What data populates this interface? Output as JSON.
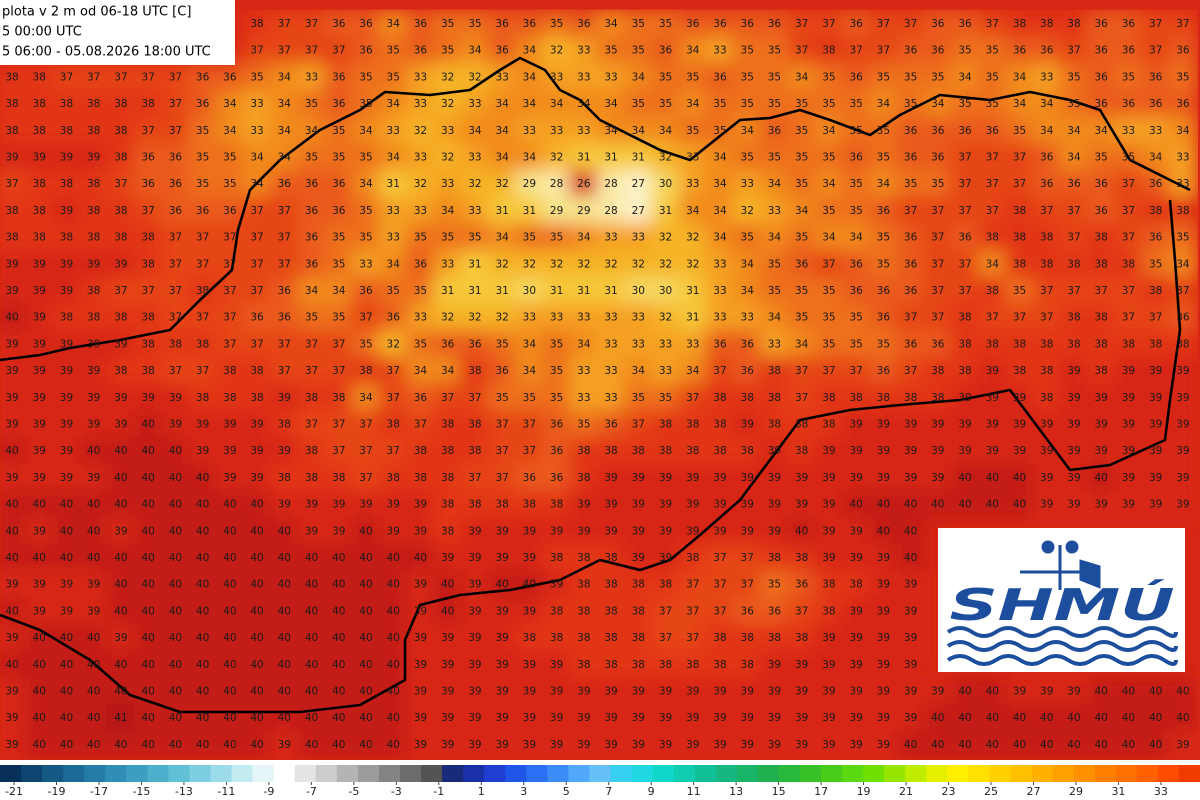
{
  "header": {
    "lines": [
      "plota v 2 m od 06-18 UTC [C]",
      "5 00:00 UTC",
      "5 06:00 - 05.08.2026 18:00 UTC"
    ]
  },
  "logo": {
    "text": "SHMÚ"
  },
  "map": {
    "map_colors": {
      "27": "#fdf3c8",
      "28": "#fbe9a6",
      "29": "#f8e58c",
      "30": "#f6d860",
      "31": "#f7c93a",
      "32": "#f6b428",
      "33": "#f5a020",
      "34": "#f28a1e",
      "35": "#ee701c",
      "36": "#ea5a1a",
      "37": "#e64418",
      "38": "#e23416",
      "39": "#d82614",
      "40": "#c41e14",
      "41": "#b01812"
    },
    "grid": [
      [
        null,
        null,
        null,
        null,
        null,
        null,
        null,
        null,
        null,
        38,
        37,
        37,
        36,
        36,
        34,
        36,
        35,
        35,
        36,
        36,
        35,
        36,
        34,
        35,
        35,
        36,
        36,
        36,
        36,
        37,
        37,
        36,
        37,
        37,
        36,
        36,
        37,
        38,
        38,
        38,
        36,
        36,
        37,
        37
      ],
      [
        null,
        null,
        null,
        null,
        null,
        null,
        null,
        null,
        null,
        37,
        37,
        37,
        37,
        36,
        35,
        36,
        35,
        34,
        36,
        34,
        32,
        33,
        35,
        35,
        36,
        34,
        33,
        35,
        35,
        37,
        38,
        37,
        37,
        36,
        36,
        35,
        35,
        36,
        36,
        37,
        36,
        36,
        37,
        36
      ],
      [
        38,
        38,
        37,
        37,
        37,
        37,
        37,
        36,
        36,
        35,
        34,
        33,
        36,
        35,
        35,
        33,
        32,
        32,
        33,
        34,
        33,
        33,
        33,
        34,
        35,
        35,
        36,
        35,
        35,
        34,
        35,
        36,
        35,
        35,
        35,
        34,
        35,
        34,
        33,
        35,
        36,
        35,
        36,
        35
      ],
      [
        38,
        38,
        38,
        38,
        38,
        38,
        37,
        36,
        34,
        33,
        34,
        35,
        36,
        35,
        34,
        33,
        32,
        33,
        34,
        34,
        34,
        34,
        34,
        35,
        35,
        34,
        35,
        35,
        35,
        35,
        35,
        35,
        34,
        35,
        34,
        35,
        35,
        34,
        34,
        35,
        36,
        36,
        36,
        36
      ],
      [
        38,
        38,
        38,
        38,
        38,
        37,
        37,
        35,
        34,
        33,
        34,
        34,
        35,
        34,
        33,
        32,
        33,
        34,
        34,
        33,
        33,
        33,
        34,
        34,
        34,
        35,
        35,
        34,
        36,
        35,
        34,
        35,
        35,
        36,
        36,
        36,
        36,
        35,
        34,
        34,
        34,
        33,
        33,
        34
      ],
      [
        39,
        39,
        39,
        39,
        38,
        36,
        36,
        35,
        35,
        34,
        34,
        35,
        35,
        35,
        34,
        33,
        32,
        33,
        34,
        34,
        32,
        31,
        31,
        31,
        32,
        33,
        34,
        35,
        35,
        35,
        35,
        36,
        35,
        36,
        36,
        37,
        37,
        37,
        36,
        34,
        35,
        35,
        34,
        33
      ],
      [
        37,
        38,
        38,
        38,
        37,
        36,
        36,
        35,
        35,
        34,
        36,
        36,
        36,
        34,
        31,
        32,
        33,
        32,
        32,
        29,
        28,
        26,
        28,
        27,
        30,
        33,
        34,
        33,
        34,
        35,
        34,
        35,
        34,
        35,
        35,
        37,
        37,
        37,
        36,
        36,
        36,
        37,
        36,
        33
      ],
      [
        38,
        38,
        39,
        38,
        38,
        37,
        36,
        36,
        36,
        37,
        37,
        36,
        36,
        35,
        33,
        33,
        34,
        33,
        31,
        31,
        29,
        29,
        28,
        27,
        31,
        34,
        34,
        32,
        33,
        34,
        35,
        35,
        36,
        37,
        37,
        37,
        37,
        38,
        37,
        37,
        36,
        37,
        38,
        38
      ],
      [
        38,
        38,
        38,
        38,
        38,
        38,
        37,
        37,
        37,
        37,
        37,
        36,
        35,
        35,
        33,
        35,
        35,
        35,
        34,
        35,
        35,
        34,
        33,
        33,
        32,
        32,
        34,
        35,
        34,
        35,
        34,
        34,
        35,
        36,
        37,
        36,
        38,
        38,
        38,
        37,
        38,
        37,
        36,
        35
      ],
      [
        39,
        39,
        39,
        39,
        39,
        38,
        37,
        37,
        37,
        37,
        37,
        36,
        35,
        33,
        34,
        36,
        33,
        31,
        32,
        32,
        32,
        32,
        32,
        32,
        32,
        32,
        33,
        34,
        35,
        36,
        37,
        36,
        35,
        36,
        37,
        37,
        34,
        38,
        38,
        38,
        38,
        38,
        35,
        34
      ],
      [
        39,
        39,
        39,
        38,
        37,
        37,
        37,
        38,
        37,
        37,
        36,
        34,
        34,
        36,
        35,
        35,
        31,
        31,
        31,
        30,
        31,
        31,
        31,
        30,
        30,
        31,
        33,
        34,
        35,
        35,
        35,
        36,
        36,
        36,
        37,
        37,
        38,
        35,
        37,
        37,
        37,
        37,
        38,
        37
      ],
      [
        40,
        39,
        38,
        38,
        38,
        38,
        37,
        37,
        37,
        36,
        36,
        35,
        35,
        37,
        36,
        33,
        32,
        32,
        32,
        33,
        33,
        33,
        33,
        33,
        32,
        31,
        33,
        33,
        34,
        35,
        35,
        35,
        36,
        37,
        37,
        38,
        37,
        37,
        37,
        38,
        38,
        37,
        37,
        36
      ],
      [
        39,
        39,
        39,
        39,
        39,
        38,
        38,
        38,
        37,
        37,
        37,
        37,
        37,
        35,
        32,
        35,
        36,
        36,
        35,
        34,
        35,
        34,
        33,
        33,
        33,
        33,
        36,
        36,
        33,
        34,
        35,
        35,
        35,
        36,
        36,
        38,
        38,
        38,
        38,
        38,
        38,
        38,
        38,
        38
      ],
      [
        39,
        39,
        39,
        39,
        38,
        38,
        37,
        37,
        38,
        38,
        37,
        37,
        37,
        38,
        37,
        34,
        34,
        38,
        36,
        34,
        35,
        33,
        33,
        34,
        33,
        34,
        37,
        36,
        38,
        37,
        37,
        37,
        36,
        37,
        38,
        38,
        39,
        38,
        38,
        39,
        38,
        39,
        39,
        39
      ],
      [
        39,
        39,
        39,
        39,
        39,
        39,
        39,
        38,
        38,
        38,
        39,
        38,
        38,
        34,
        37,
        36,
        37,
        37,
        35,
        35,
        35,
        33,
        33,
        35,
        35,
        37,
        38,
        38,
        38,
        37,
        38,
        38,
        38,
        38,
        38,
        39,
        39,
        39,
        38,
        39,
        39,
        39,
        39,
        39
      ],
      [
        39,
        39,
        39,
        39,
        39,
        40,
        39,
        39,
        39,
        39,
        38,
        37,
        37,
        37,
        38,
        37,
        38,
        38,
        37,
        37,
        36,
        35,
        36,
        37,
        38,
        38,
        38,
        39,
        38,
        38,
        38,
        39,
        39,
        39,
        39,
        39,
        39,
        39,
        39,
        39,
        39,
        39,
        39,
        39
      ],
      [
        40,
        39,
        39,
        40,
        40,
        40,
        40,
        39,
        39,
        39,
        39,
        38,
        37,
        37,
        37,
        38,
        38,
        38,
        37,
        37,
        36,
        38,
        38,
        38,
        38,
        38,
        38,
        38,
        39,
        38,
        39,
        39,
        39,
        39,
        39,
        39,
        39,
        39,
        39,
        39,
        39,
        39,
        39,
        39
      ],
      [
        39,
        39,
        39,
        39,
        40,
        40,
        40,
        40,
        39,
        39,
        38,
        38,
        38,
        37,
        38,
        38,
        38,
        37,
        37,
        36,
        36,
        38,
        39,
        39,
        39,
        39,
        39,
        39,
        39,
        39,
        39,
        39,
        39,
        39,
        39,
        40,
        40,
        40,
        39,
        39,
        40,
        39,
        39,
        39
      ],
      [
        40,
        40,
        40,
        40,
        40,
        40,
        40,
        40,
        40,
        40,
        39,
        39,
        39,
        39,
        39,
        39,
        38,
        38,
        38,
        38,
        38,
        39,
        39,
        39,
        39,
        39,
        39,
        39,
        39,
        39,
        39,
        40,
        40,
        40,
        40,
        40,
        40,
        40,
        39,
        39,
        39,
        39,
        39,
        39
      ],
      [
        40,
        39,
        40,
        40,
        39,
        40,
        40,
        40,
        40,
        40,
        40,
        39,
        39,
        40,
        39,
        39,
        38,
        39,
        39,
        39,
        39,
        39,
        39,
        39,
        39,
        39,
        39,
        39,
        39,
        40,
        39,
        39,
        40,
        40,
        null,
        null,
        null,
        null,
        null,
        null,
        null,
        null,
        null,
        null
      ],
      [
        40,
        40,
        40,
        40,
        40,
        40,
        40,
        40,
        40,
        40,
        40,
        40,
        40,
        40,
        40,
        40,
        39,
        39,
        39,
        39,
        38,
        38,
        38,
        39,
        39,
        38,
        37,
        37,
        38,
        38,
        39,
        39,
        39,
        40,
        null,
        null,
        null,
        null,
        null,
        null,
        null,
        null,
        null,
        null
      ],
      [
        39,
        39,
        39,
        39,
        40,
        40,
        40,
        40,
        40,
        40,
        40,
        40,
        40,
        40,
        40,
        39,
        40,
        39,
        40,
        40,
        39,
        38,
        38,
        38,
        38,
        37,
        37,
        37,
        35,
        36,
        38,
        38,
        39,
        39,
        null,
        null,
        null,
        null,
        null,
        null,
        null,
        null,
        null,
        null
      ],
      [
        40,
        39,
        39,
        39,
        40,
        40,
        40,
        40,
        40,
        40,
        40,
        40,
        40,
        40,
        40,
        39,
        40,
        39,
        39,
        39,
        38,
        38,
        38,
        38,
        37,
        37,
        37,
        36,
        36,
        37,
        38,
        39,
        39,
        39,
        null,
        null,
        null,
        null,
        null,
        null,
        null,
        null,
        null,
        null
      ],
      [
        39,
        40,
        40,
        40,
        39,
        40,
        40,
        40,
        40,
        40,
        40,
        40,
        40,
        40,
        40,
        39,
        39,
        39,
        39,
        38,
        38,
        38,
        38,
        38,
        37,
        37,
        38,
        38,
        38,
        38,
        39,
        39,
        39,
        39,
        null,
        null,
        null,
        null,
        null,
        null,
        null,
        null,
        null,
        null
      ],
      [
        40,
        40,
        40,
        40,
        40,
        40,
        40,
        40,
        40,
        40,
        40,
        40,
        40,
        40,
        40,
        39,
        39,
        39,
        39,
        39,
        39,
        38,
        38,
        38,
        38,
        38,
        38,
        38,
        39,
        39,
        39,
        39,
        39,
        39,
        null,
        null,
        null,
        null,
        null,
        null,
        null,
        null,
        null,
        null
      ],
      [
        39,
        40,
        40,
        40,
        40,
        40,
        40,
        40,
        40,
        40,
        40,
        40,
        40,
        40,
        40,
        39,
        39,
        39,
        39,
        39,
        39,
        39,
        39,
        39,
        39,
        39,
        39,
        39,
        39,
        39,
        39,
        39,
        39,
        39,
        39,
        40,
        40,
        39,
        39,
        39,
        40,
        40,
        40,
        40
      ],
      [
        39,
        40,
        40,
        40,
        41,
        40,
        40,
        40,
        40,
        40,
        40,
        40,
        40,
        40,
        40,
        39,
        39,
        39,
        39,
        39,
        39,
        39,
        39,
        39,
        39,
        39,
        39,
        39,
        39,
        39,
        39,
        39,
        39,
        39,
        40,
        40,
        40,
        40,
        40,
        40,
        40,
        40,
        40,
        40
      ],
      [
        39,
        40,
        40,
        40,
        40,
        40,
        40,
        40,
        40,
        40,
        39,
        40,
        40,
        40,
        40,
        39,
        39,
        39,
        39,
        39,
        39,
        39,
        39,
        39,
        39,
        39,
        39,
        39,
        39,
        39,
        39,
        39,
        39,
        40,
        40,
        40,
        40,
        40,
        40,
        40,
        40,
        40,
        40,
        39
      ]
    ]
  },
  "colorbar": {
    "lim": [
      -21.66,
      34.84
    ],
    "colors": [
      "#08305a",
      "#0d4470",
      "#145884",
      "#1c6a98",
      "#257ca8",
      "#308eb6",
      "#3c9fc2",
      "#4cb0cc",
      "#60c0d6",
      "#7ccee0",
      "#9cdcea",
      "#c2ebf2",
      "#e6f6f8",
      "#ffffff",
      "#e4e4e4",
      "#cccccc",
      "#b4b4b4",
      "#9c9c9c",
      "#848484",
      "#6c6c6c",
      "#545454",
      "#1a2a7a",
      "#1a30a8",
      "#1f3fd0",
      "#1f55e8",
      "#2a70f5",
      "#3c8cf8",
      "#52a8fa",
      "#66c0f8",
      "#38d0f0",
      "#20d8e0",
      "#10d8c8",
      "#10ccb0",
      "#10c098",
      "#14b880",
      "#18b468",
      "#20b050",
      "#28b83c",
      "#38c028",
      "#48cc18",
      "#5ad810",
      "#70e000",
      "#98e600",
      "#c0ec00",
      "#e4f000",
      "#fff000",
      "#ffe000",
      "#ffd000",
      "#ffc000",
      "#ffb000",
      "#ffa000",
      "#ff9000",
      "#ff8000",
      "#ff7000",
      "#ff6000",
      "#ff4c00",
      "#f03c00"
    ],
    "ticks": [
      -21,
      -19,
      -17,
      -15,
      -13,
      -11,
      -9,
      -7,
      -5,
      -3,
      -1,
      1,
      3,
      5,
      7,
      9,
      11,
      13,
      15,
      17,
      19,
      21,
      23,
      25,
      27,
      29,
      31,
      33
    ]
  }
}
